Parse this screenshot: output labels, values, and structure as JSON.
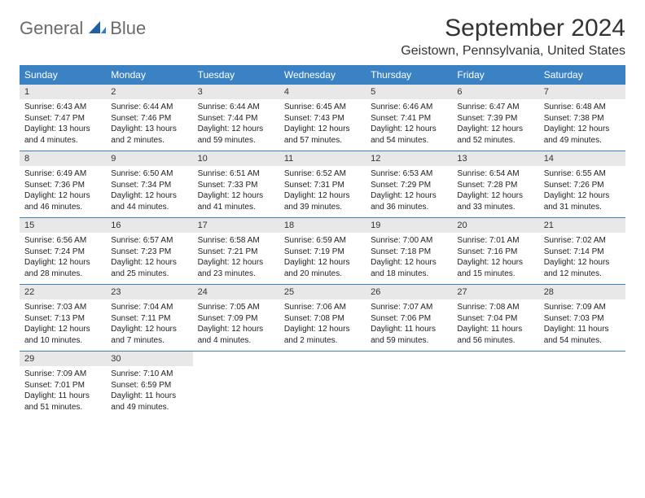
{
  "logo": {
    "general": "General",
    "blue": "Blue"
  },
  "title": "September 2024",
  "subtitle": "Geistown, Pennsylvania, United States",
  "colors": {
    "header_bg": "#3b82c4",
    "header_text": "#ffffff",
    "daynum_bg": "#e8e8e8",
    "text": "#333333",
    "week_border": "#3b82c4",
    "logo_gray": "#6b6b6b",
    "logo_blue": "#3b7fc4"
  },
  "day_headers": [
    "Sunday",
    "Monday",
    "Tuesday",
    "Wednesday",
    "Thursday",
    "Friday",
    "Saturday"
  ],
  "weeks": [
    [
      {
        "n": "1",
        "sunrise": "6:43 AM",
        "sunset": "7:47 PM",
        "daylight": "13 hours and 4 minutes."
      },
      {
        "n": "2",
        "sunrise": "6:44 AM",
        "sunset": "7:46 PM",
        "daylight": "13 hours and 2 minutes."
      },
      {
        "n": "3",
        "sunrise": "6:44 AM",
        "sunset": "7:44 PM",
        "daylight": "12 hours and 59 minutes."
      },
      {
        "n": "4",
        "sunrise": "6:45 AM",
        "sunset": "7:43 PM",
        "daylight": "12 hours and 57 minutes."
      },
      {
        "n": "5",
        "sunrise": "6:46 AM",
        "sunset": "7:41 PM",
        "daylight": "12 hours and 54 minutes."
      },
      {
        "n": "6",
        "sunrise": "6:47 AM",
        "sunset": "7:39 PM",
        "daylight": "12 hours and 52 minutes."
      },
      {
        "n": "7",
        "sunrise": "6:48 AM",
        "sunset": "7:38 PM",
        "daylight": "12 hours and 49 minutes."
      }
    ],
    [
      {
        "n": "8",
        "sunrise": "6:49 AM",
        "sunset": "7:36 PM",
        "daylight": "12 hours and 46 minutes."
      },
      {
        "n": "9",
        "sunrise": "6:50 AM",
        "sunset": "7:34 PM",
        "daylight": "12 hours and 44 minutes."
      },
      {
        "n": "10",
        "sunrise": "6:51 AM",
        "sunset": "7:33 PM",
        "daylight": "12 hours and 41 minutes."
      },
      {
        "n": "11",
        "sunrise": "6:52 AM",
        "sunset": "7:31 PM",
        "daylight": "12 hours and 39 minutes."
      },
      {
        "n": "12",
        "sunrise": "6:53 AM",
        "sunset": "7:29 PM",
        "daylight": "12 hours and 36 minutes."
      },
      {
        "n": "13",
        "sunrise": "6:54 AM",
        "sunset": "7:28 PM",
        "daylight": "12 hours and 33 minutes."
      },
      {
        "n": "14",
        "sunrise": "6:55 AM",
        "sunset": "7:26 PM",
        "daylight": "12 hours and 31 minutes."
      }
    ],
    [
      {
        "n": "15",
        "sunrise": "6:56 AM",
        "sunset": "7:24 PM",
        "daylight": "12 hours and 28 minutes."
      },
      {
        "n": "16",
        "sunrise": "6:57 AM",
        "sunset": "7:23 PM",
        "daylight": "12 hours and 25 minutes."
      },
      {
        "n": "17",
        "sunrise": "6:58 AM",
        "sunset": "7:21 PM",
        "daylight": "12 hours and 23 minutes."
      },
      {
        "n": "18",
        "sunrise": "6:59 AM",
        "sunset": "7:19 PM",
        "daylight": "12 hours and 20 minutes."
      },
      {
        "n": "19",
        "sunrise": "7:00 AM",
        "sunset": "7:18 PM",
        "daylight": "12 hours and 18 minutes."
      },
      {
        "n": "20",
        "sunrise": "7:01 AM",
        "sunset": "7:16 PM",
        "daylight": "12 hours and 15 minutes."
      },
      {
        "n": "21",
        "sunrise": "7:02 AM",
        "sunset": "7:14 PM",
        "daylight": "12 hours and 12 minutes."
      }
    ],
    [
      {
        "n": "22",
        "sunrise": "7:03 AM",
        "sunset": "7:13 PM",
        "daylight": "12 hours and 10 minutes."
      },
      {
        "n": "23",
        "sunrise": "7:04 AM",
        "sunset": "7:11 PM",
        "daylight": "12 hours and 7 minutes."
      },
      {
        "n": "24",
        "sunrise": "7:05 AM",
        "sunset": "7:09 PM",
        "daylight": "12 hours and 4 minutes."
      },
      {
        "n": "25",
        "sunrise": "7:06 AM",
        "sunset": "7:08 PM",
        "daylight": "12 hours and 2 minutes."
      },
      {
        "n": "26",
        "sunrise": "7:07 AM",
        "sunset": "7:06 PM",
        "daylight": "11 hours and 59 minutes."
      },
      {
        "n": "27",
        "sunrise": "7:08 AM",
        "sunset": "7:04 PM",
        "daylight": "11 hours and 56 minutes."
      },
      {
        "n": "28",
        "sunrise": "7:09 AM",
        "sunset": "7:03 PM",
        "daylight": "11 hours and 54 minutes."
      }
    ],
    [
      {
        "n": "29",
        "sunrise": "7:09 AM",
        "sunset": "7:01 PM",
        "daylight": "11 hours and 51 minutes."
      },
      {
        "n": "30",
        "sunrise": "7:10 AM",
        "sunset": "6:59 PM",
        "daylight": "11 hours and 49 minutes."
      },
      null,
      null,
      null,
      null,
      null
    ]
  ],
  "labels": {
    "sunrise": "Sunrise:",
    "sunset": "Sunset:",
    "daylight": "Daylight:"
  }
}
